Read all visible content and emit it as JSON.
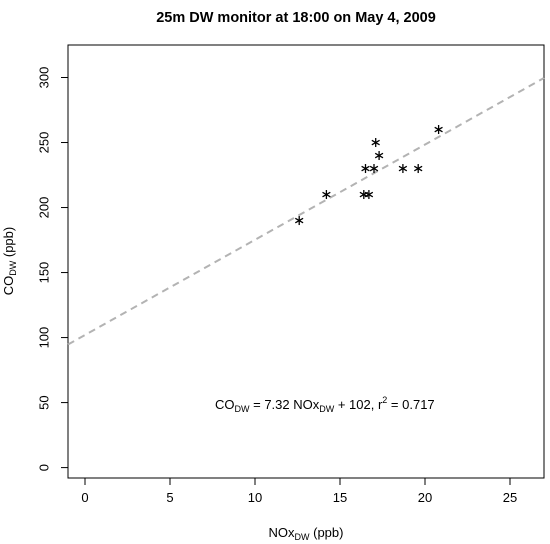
{
  "chart_data": {
    "type": "scatter",
    "title": "25m DW monitor at 18:00 on May 4,  2009",
    "xlabel": {
      "main": "NOx",
      "sub": "DW",
      "unit": " (ppb)"
    },
    "ylabel": {
      "main": "CO",
      "sub": "DW",
      "unit": " (ppb)"
    },
    "xlim": [
      -1,
      27
    ],
    "ylim": [
      -8,
      325
    ],
    "x_ticks": [
      0,
      5,
      10,
      15,
      20,
      25
    ],
    "y_ticks": [
      0,
      50,
      100,
      150,
      200,
      250,
      300
    ],
    "marker": "*",
    "points": [
      {
        "x": 12.6,
        "y": 190
      },
      {
        "x": 14.2,
        "y": 210
      },
      {
        "x": 16.4,
        "y": 210
      },
      {
        "x": 16.7,
        "y": 210
      },
      {
        "x": 16.5,
        "y": 230
      },
      {
        "x": 17.0,
        "y": 230
      },
      {
        "x": 17.1,
        "y": 250
      },
      {
        "x": 17.3,
        "y": 240
      },
      {
        "x": 18.7,
        "y": 230
      },
      {
        "x": 19.6,
        "y": 230
      },
      {
        "x": 20.8,
        "y": 260
      }
    ],
    "fit_line": {
      "slope": 7.32,
      "intercept": 102,
      "style": "dashed",
      "color": "#b3b3b3"
    },
    "annotation": {
      "lhs_main": "CO",
      "lhs_sub": "DW",
      "eq": "  =  7.32 NOx",
      "x_sub": "DW",
      "tail": " +  102,  r",
      "sup": "2",
      "end": "  =  0.717"
    },
    "grid": false,
    "legend": "none"
  }
}
